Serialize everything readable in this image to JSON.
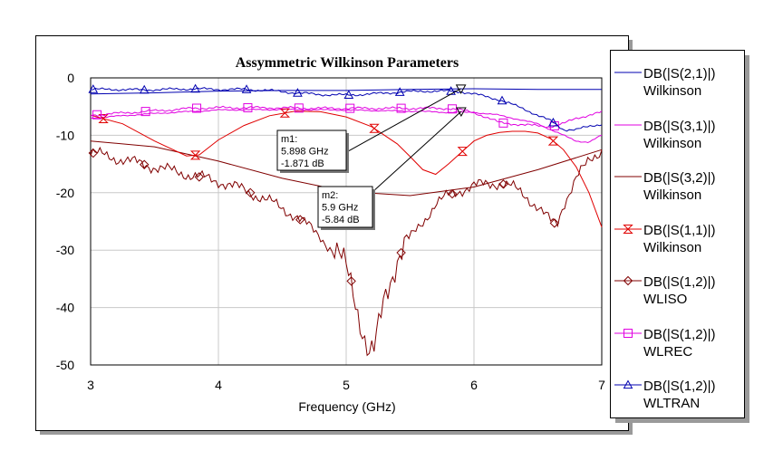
{
  "chart_data": {
    "type": "line",
    "title": "Assymmetric Wilkinson Parameters",
    "xlabel": "Frequency (GHz)",
    "ylabel": "",
    "xlim": [
      3,
      7
    ],
    "ylim": [
      -50,
      0
    ],
    "xticks": [
      "3",
      "4",
      "5",
      "6",
      "7"
    ],
    "yticks": [
      "0",
      "-10",
      "-20",
      "-30",
      "-40",
      "-50"
    ],
    "grid": true,
    "legend_position": "right",
    "series": [
      {
        "name": "DB(|S(2,1)|)",
        "sub": "Wilkinson",
        "color": "#0000b0",
        "marker": "none",
        "x": [
          3.0,
          3.5,
          4.0,
          4.5,
          5.0,
          5.5,
          6.0,
          6.5,
          7.0
        ],
        "y": [
          -2.8,
          -2.6,
          -2.3,
          -2.2,
          -2.2,
          -2.0,
          -1.9,
          -2.0,
          -2.0
        ]
      },
      {
        "name": "DB(|S(3,1)|)",
        "sub": "Wilkinson",
        "color": "#e000e0",
        "marker": "none",
        "x": [
          3.0,
          3.5,
          4.0,
          4.5,
          5.0,
          5.5,
          5.8,
          6.0,
          6.2,
          6.4,
          6.5,
          6.6,
          6.7,
          6.8,
          6.9,
          7.0
        ],
        "y": [
          -7.0,
          -6.2,
          -5.6,
          -5.5,
          -5.6,
          -5.8,
          -6.0,
          -6.0,
          -6.5,
          -7.5,
          -8.0,
          -9.0,
          -10.0,
          -11.0,
          -11.2,
          -10.0
        ]
      },
      {
        "name": "DB(|S(3,2)|)",
        "sub": "Wilkinson",
        "color": "#800000",
        "marker": "none",
        "x": [
          3.0,
          3.5,
          4.0,
          4.5,
          5.0,
          5.5,
          6.0,
          6.5,
          7.0
        ],
        "y": [
          -11.0,
          -12.0,
          -14.5,
          -17.5,
          -19.8,
          -20.5,
          -19.0,
          -16.0,
          -12.5
        ]
      },
      {
        "name": "DB(|S(1,1)|)",
        "sub": "Wilkinson",
        "color": "#e00000",
        "marker": "hourglass",
        "x": [
          3.0,
          3.25,
          3.5,
          3.75,
          3.85,
          4.0,
          4.2,
          4.4,
          4.6,
          4.8,
          5.0,
          5.2,
          5.4,
          5.5,
          5.6,
          5.7,
          5.8,
          5.9,
          6.0,
          6.1,
          6.2,
          6.3,
          6.4,
          6.5,
          6.6,
          6.7,
          6.8,
          6.9,
          7.0
        ],
        "y": [
          -6.5,
          -8.0,
          -11.0,
          -13.6,
          -13.4,
          -10.8,
          -8.3,
          -6.6,
          -5.8,
          -5.9,
          -6.8,
          -8.5,
          -11.5,
          -13.7,
          -16.0,
          -16.8,
          -15.0,
          -13.0,
          -11.0,
          -10.0,
          -9.5,
          -9.3,
          -9.3,
          -9.6,
          -10.6,
          -12.5,
          -15.5,
          -20.0,
          -26.0
        ],
        "markers_x": [
          3.1,
          3.82,
          4.52,
          5.22,
          5.91,
          6.62
        ]
      },
      {
        "name": "DB(|S(1,2)|)",
        "sub": "WLISO",
        "color": "#800000",
        "marker": "diamond",
        "x": [
          3.0,
          3.2,
          3.4,
          3.6,
          3.8,
          4.0,
          4.2,
          4.4,
          4.6,
          4.8,
          4.9,
          5.0,
          5.05,
          5.1,
          5.15,
          5.18,
          5.22,
          5.26,
          5.3,
          5.35,
          5.4,
          5.5,
          5.6,
          5.7,
          5.8,
          5.9,
          6.0,
          6.1,
          6.2,
          6.3,
          6.4,
          6.5,
          6.6,
          6.65,
          6.7,
          6.8,
          6.9,
          7.0
        ],
        "y": [
          -13.0,
          -14.0,
          -15.0,
          -16.0,
          -17.0,
          -18.0,
          -19.5,
          -21.5,
          -24.0,
          -27.5,
          -30.5,
          -33.0,
          -36.0,
          -41.0,
          -46.0,
          -48.5,
          -48.0,
          -43.0,
          -38.0,
          -34.5,
          -31.5,
          -28.0,
          -25.0,
          -22.0,
          -20.5,
          -19.5,
          -18.8,
          -18.5,
          -18.3,
          -19.0,
          -20.5,
          -22.5,
          -25.0,
          -25.5,
          -22.0,
          -17.5,
          -14.5,
          -12.5
        ],
        "markers_x": [
          3.02,
          3.42,
          3.85,
          4.25,
          4.64,
          5.04,
          5.43,
          5.83,
          6.23,
          6.63
        ]
      },
      {
        "name": "DB(|S(1,2)|)",
        "sub": "WLREC",
        "color": "#e000e0",
        "marker": "square",
        "x": [
          3.0,
          3.2,
          3.4,
          3.6,
          3.8,
          4.0,
          4.4,
          4.8,
          5.2,
          5.6,
          5.8,
          6.0,
          6.2,
          6.4,
          6.6,
          6.7,
          6.8,
          7.0
        ],
        "y": [
          -6.5,
          -6.2,
          -5.9,
          -5.6,
          -5.3,
          -5.2,
          -5.2,
          -5.3,
          -5.3,
          -5.3,
          -5.3,
          -6.0,
          -7.8,
          -8.2,
          -8.5,
          -8.0,
          -7.0,
          -6.0
        ],
        "markers_x": [
          3.05,
          3.43,
          3.83,
          4.23,
          4.63,
          5.03,
          5.43,
          5.83,
          6.23,
          6.63
        ]
      },
      {
        "name": "DB(|S(1,2)|)",
        "sub": "WLTRAN",
        "color": "#0000b0",
        "marker": "triangle",
        "x": [
          3.0,
          3.2,
          3.4,
          3.6,
          3.8,
          4.0,
          4.2,
          4.4,
          4.6,
          4.8,
          5.0,
          5.2,
          5.4,
          5.6,
          5.8,
          5.9,
          6.0,
          6.2,
          6.4,
          6.6,
          6.7,
          6.8,
          6.9,
          7.0
        ],
        "y": [
          -2.0,
          -2.0,
          -2.1,
          -2.0,
          -1.9,
          -2.0,
          -2.0,
          -2.2,
          -2.6,
          -2.9,
          -3.0,
          -2.8,
          -2.5,
          -2.3,
          -2.3,
          -2.4,
          -2.8,
          -3.8,
          -5.5,
          -7.5,
          -9.0,
          -9.0,
          -8.5,
          -8.0
        ],
        "markers_x": [
          3.02,
          3.42,
          3.82,
          4.22,
          4.62,
          5.02,
          5.42,
          5.82,
          6.22,
          6.62
        ]
      }
    ],
    "annotations": [
      {
        "id": "m1",
        "label": "m1:",
        "freq": "5.898 GHz",
        "value": "-1.871 dB",
        "x": 5.898,
        "y": -1.871
      },
      {
        "id": "m2",
        "label": "m2:",
        "freq": "5.9 GHz",
        "value": "-5.84 dB",
        "x": 5.9,
        "y": -5.84
      }
    ]
  }
}
